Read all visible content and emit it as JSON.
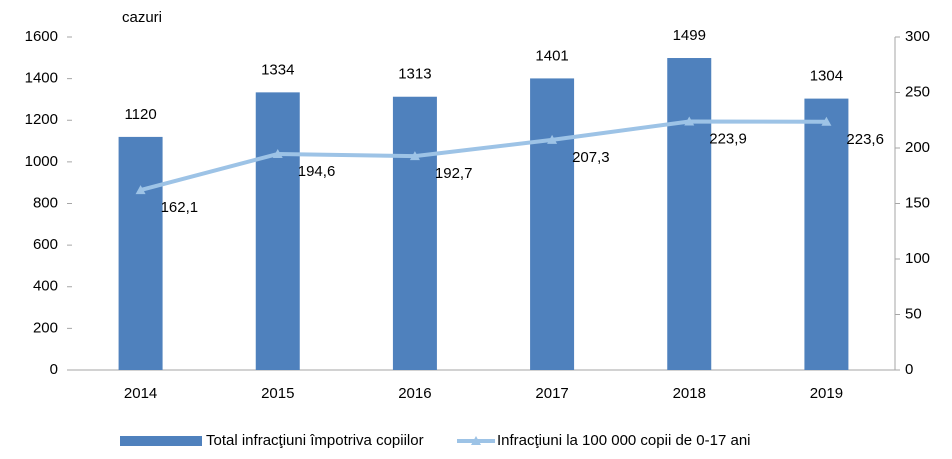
{
  "chart_data": {
    "type": "bar",
    "y_label": "cazuri",
    "categories": [
      "2014",
      "2015",
      "2016",
      "2017",
      "2018",
      "2019"
    ],
    "series": [
      {
        "name": "Total infracţiuni împotriva copiilor",
        "type": "bar",
        "color": "#4f81bd",
        "values": [
          1120,
          1334,
          1313,
          1401,
          1499,
          1304
        ]
      },
      {
        "name": "Infracţiuni la 100 000 copii de 0-17 ani",
        "type": "line",
        "color": "#9dc3e6",
        "axis": "y2",
        "values": [
          162.1,
          194.6,
          192.7,
          207.3,
          223.9,
          223.6
        ],
        "value_labels": [
          "162,1",
          "194,6",
          "192,7",
          "207,3",
          "223,9",
          "223,6"
        ]
      }
    ],
    "ylim": [
      0,
      1600
    ],
    "yticks": [
      0,
      200,
      400,
      600,
      800,
      1000,
      1200,
      1400,
      1600
    ],
    "y2lim": [
      0,
      300
    ],
    "y2ticks": [
      0,
      50,
      100,
      150,
      200,
      250,
      300
    ],
    "legend": "bottom"
  }
}
